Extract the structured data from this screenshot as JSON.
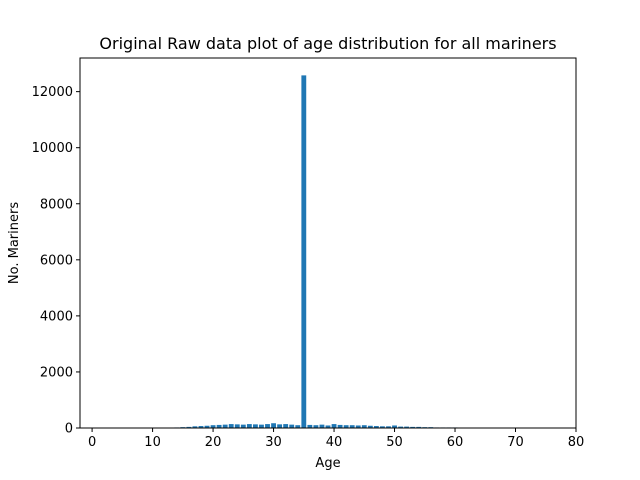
{
  "chart_data": {
    "type": "bar",
    "title": "Original Raw data plot of age distribution for all mariners",
    "xlabel": "Age",
    "ylabel": "No. Mariners",
    "xlim": [
      -2,
      80
    ],
    "ylim": [
      0,
      13200
    ],
    "xticks": [
      0,
      10,
      20,
      30,
      40,
      50,
      60,
      70,
      80
    ],
    "yticks": [
      0,
      2000,
      4000,
      6000,
      8000,
      10000,
      12000
    ],
    "grid": false,
    "bar_color": "#1f77b4",
    "x": [
      14,
      15,
      16,
      17,
      18,
      19,
      20,
      21,
      22,
      23,
      24,
      25,
      26,
      27,
      28,
      29,
      30,
      31,
      32,
      33,
      34,
      35,
      36,
      37,
      38,
      39,
      40,
      41,
      42,
      43,
      44,
      45,
      46,
      47,
      48,
      49,
      50,
      51,
      52,
      53,
      54,
      55,
      56,
      57,
      58,
      59,
      60
    ],
    "values": [
      20,
      30,
      40,
      60,
      70,
      80,
      100,
      110,
      120,
      140,
      130,
      120,
      140,
      130,
      120,
      140,
      170,
      130,
      140,
      120,
      100,
      12580,
      110,
      100,
      120,
      90,
      140,
      110,
      100,
      100,
      90,
      100,
      80,
      70,
      60,
      60,
      90,
      50,
      50,
      40,
      40,
      30,
      30,
      20,
      20,
      20,
      20
    ]
  }
}
